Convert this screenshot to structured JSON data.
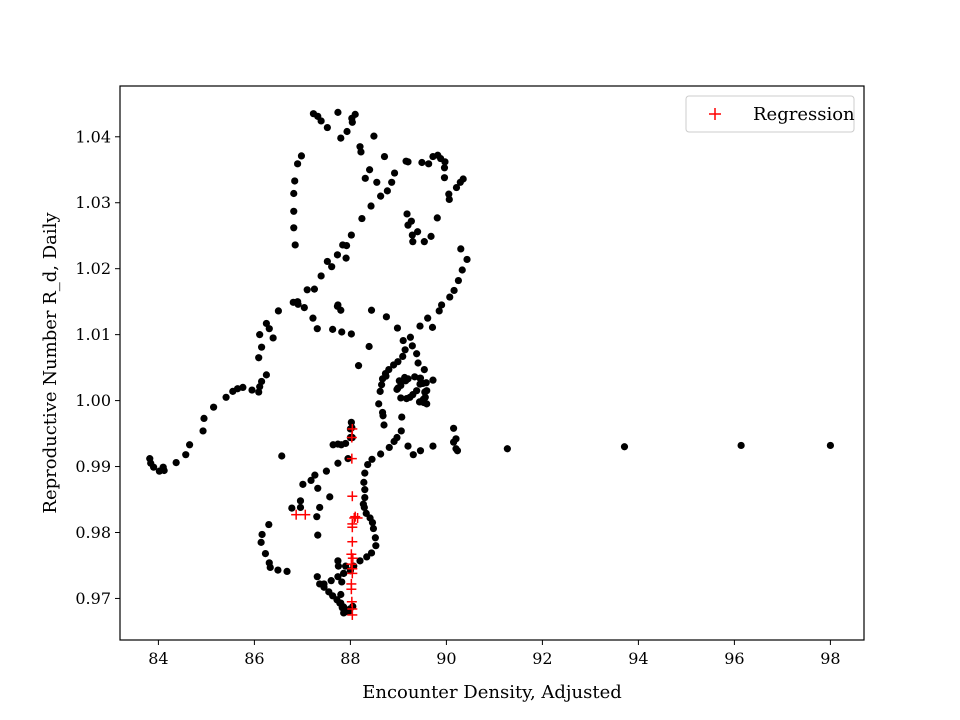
{
  "chart_data": {
    "type": "scatter",
    "title": "",
    "xlabel": "Encounter Density, Adjusted",
    "ylabel": "Reproductive Number R_d, Daily",
    "xlim": [
      83.2,
      98.7
    ],
    "ylim": [
      0.9637,
      1.0477
    ],
    "xticks": [
      84,
      86,
      88,
      90,
      92,
      94,
      96,
      98
    ],
    "yticks": [
      0.97,
      0.98,
      0.99,
      1.0,
      1.01,
      1.02,
      1.03,
      1.04
    ],
    "ytick_labels": [
      "0.97",
      "0.98",
      "0.99",
      "1.00",
      "1.01",
      "1.02",
      "1.03",
      "1.04"
    ],
    "grid": false,
    "legend": {
      "position": "top-right",
      "entries": [
        "Regression"
      ]
    },
    "series": [
      {
        "marker": "dot",
        "color": "#000000",
        "points": [
          [
            83.82,
            0.9912
          ],
          [
            83.84,
            0.9905
          ],
          [
            83.9,
            0.9899
          ],
          [
            84.02,
            0.9893
          ],
          [
            84.12,
            0.9894
          ],
          [
            84.1,
            0.9899
          ],
          [
            84.37,
            0.9906
          ],
          [
            84.57,
            0.9918
          ],
          [
            84.65,
            0.9933
          ],
          [
            84.93,
            0.9954
          ],
          [
            84.95,
            0.9973
          ],
          [
            85.15,
            0.999
          ],
          [
            85.41,
            1.0005
          ],
          [
            85.55,
            1.0014
          ],
          [
            85.65,
            1.0018
          ],
          [
            85.76,
            1.002
          ],
          [
            85.95,
            1.0016
          ],
          [
            86.09,
            1.0013
          ],
          [
            86.11,
            1.0021
          ],
          [
            86.15,
            1.0029
          ],
          [
            86.25,
            1.0039
          ],
          [
            86.09,
            1.0065
          ],
          [
            86.15,
            1.0081
          ],
          [
            86.39,
            1.0095
          ],
          [
            86.31,
            1.0109
          ],
          [
            86.11,
            1.01
          ],
          [
            86.25,
            1.0117
          ],
          [
            86.5,
            1.0136
          ],
          [
            86.81,
            1.0149
          ],
          [
            86.91,
            1.0146
          ],
          [
            87.04,
            1.0141
          ],
          [
            87.22,
            1.0125
          ],
          [
            87.25,
            1.0169
          ],
          [
            87.39,
            1.0189
          ],
          [
            87.52,
            1.0211
          ],
          [
            87.61,
            1.0203
          ],
          [
            87.73,
            1.0221
          ],
          [
            87.84,
            1.0236
          ],
          [
            87.92,
            1.0235
          ],
          [
            87.91,
            1.0216
          ],
          [
            88.02,
            1.0251
          ],
          [
            88.24,
            1.0276
          ],
          [
            88.43,
            1.0295
          ],
          [
            88.63,
            1.031
          ],
          [
            88.77,
            1.0318
          ],
          [
            88.86,
            1.0331
          ],
          [
            88.92,
            1.0345
          ],
          [
            88.71,
            1.037
          ],
          [
            88.49,
            1.0401
          ],
          [
            88.03,
            1.0428
          ],
          [
            88.1,
            1.0434
          ],
          [
            88.04,
            1.0422
          ],
          [
            87.93,
            1.0408
          ],
          [
            87.8,
            1.0398
          ],
          [
            87.52,
            1.0414
          ],
          [
            87.39,
            1.0424
          ],
          [
            87.32,
            1.0431
          ],
          [
            87.23,
            1.0435
          ],
          [
            87.74,
            1.0437
          ],
          [
            86.98,
            1.0371
          ],
          [
            86.9,
            1.0359
          ],
          [
            86.84,
            1.0333
          ],
          [
            86.82,
            1.0314
          ],
          [
            86.82,
            1.0287
          ],
          [
            86.82,
            1.0262
          ],
          [
            86.85,
            1.0236
          ],
          [
            87.1,
            1.0168
          ],
          [
            87.31,
            1.0109
          ],
          [
            86.9,
            1.015
          ],
          [
            87.73,
            1.0143
          ],
          [
            87.74,
            1.0145
          ],
          [
            87.8,
            1.0137
          ],
          [
            87.63,
            1.0108
          ],
          [
            87.82,
            1.0104
          ],
          [
            88.44,
            1.0137
          ],
          [
            88.75,
            1.0127
          ],
          [
            88.98,
            1.011
          ],
          [
            89.1,
            1.0091
          ],
          [
            89.14,
            1.0077
          ],
          [
            89.09,
            1.0067
          ],
          [
            88.99,
            1.0059
          ],
          [
            88.9,
            1.0054
          ],
          [
            88.8,
            1.0047
          ],
          [
            88.73,
            1.0041
          ],
          [
            88.67,
            1.0033
          ],
          [
            88.65,
            1.0024
          ],
          [
            88.62,
            1.0014
          ],
          [
            88.59,
            0.9995
          ],
          [
            88.67,
            0.9982
          ],
          [
            88.99,
            1.0019
          ],
          [
            89.05,
            1.0023
          ],
          [
            89.15,
            1.003
          ],
          [
            89.2,
            1.0033
          ],
          [
            89.34,
            1.0036
          ],
          [
            89.45,
            1.0034
          ],
          [
            89.45,
            1.0025
          ],
          [
            89.38,
            1.0015
          ],
          [
            89.3,
            1.0009
          ],
          [
            89.24,
            1.0005
          ],
          [
            89.17,
            1.0003
          ],
          [
            89.05,
            1.0004
          ],
          [
            88.97,
            1.0017
          ],
          [
            89.02,
            1.003
          ],
          [
            89.13,
            1.0035
          ],
          [
            89.46,
            1.0034
          ],
          [
            89.51,
            1.0026
          ],
          [
            89.55,
            1.0013
          ],
          [
            89.56,
            1.0005
          ],
          [
            89.59,
            0.9995
          ],
          [
            89.53,
            0.9997
          ],
          [
            89.44,
            0.9998
          ],
          [
            89.52,
            1.0002
          ],
          [
            89.59,
            1.0015
          ],
          [
            89.58,
            1.0027
          ],
          [
            89.72,
            1.0031
          ],
          [
            89.54,
            1.0047
          ],
          [
            89.41,
            1.0057
          ],
          [
            89.38,
            1.0071
          ],
          [
            89.29,
            1.0083
          ],
          [
            89.25,
            1.0096
          ],
          [
            89.45,
            1.0113
          ],
          [
            89.61,
            1.0125
          ],
          [
            89.71,
            1.0111
          ],
          [
            89.85,
            1.0136
          ],
          [
            89.9,
            1.0145
          ],
          [
            90.07,
            1.0157
          ],
          [
            90.16,
            1.0167
          ],
          [
            90.25,
            1.0182
          ],
          [
            90.33,
            1.0198
          ],
          [
            90.43,
            1.0214
          ],
          [
            90.3,
            1.023
          ],
          [
            89.81,
            1.0277
          ],
          [
            89.68,
            1.0249
          ],
          [
            89.54,
            1.0241
          ],
          [
            89.4,
            1.0256
          ],
          [
            89.3,
            1.0241
          ],
          [
            89.29,
            1.0251
          ],
          [
            89.27,
            1.0272
          ],
          [
            89.18,
            1.0283
          ],
          [
            89.2,
            1.0266
          ],
          [
            89.16,
            1.0363
          ],
          [
            89.2,
            1.0362
          ],
          [
            89.49,
            1.0361
          ],
          [
            89.63,
            1.0359
          ],
          [
            89.72,
            1.037
          ],
          [
            89.82,
            1.0372
          ],
          [
            89.88,
            1.0367
          ],
          [
            89.96,
            1.0353
          ],
          [
            89.97,
            1.0362
          ],
          [
            89.96,
            1.0338
          ],
          [
            90.05,
            1.0313
          ],
          [
            90.06,
            1.0305
          ],
          [
            90.21,
            1.0323
          ],
          [
            90.35,
            1.0336
          ],
          [
            90.29,
            1.0331
          ],
          [
            88.55,
            1.0331
          ],
          [
            88.4,
            1.035
          ],
          [
            88.2,
            1.0385
          ],
          [
            88.22,
            1.0377
          ],
          [
            88.31,
            1.0337
          ],
          [
            88.74,
            1.0037
          ],
          [
            88.39,
            1.0082
          ],
          [
            88.17,
            1.0053
          ],
          [
            88.02,
            1.0101
          ],
          [
            88.68,
            0.9977
          ],
          [
            89.07,
            0.9975
          ],
          [
            88.7,
            0.9963
          ],
          [
            89.06,
            0.9954
          ],
          [
            88.97,
            0.9944
          ],
          [
            88.91,
            0.9938
          ],
          [
            89.2,
            0.9931
          ],
          [
            89.72,
            0.9931
          ],
          [
            89.46,
            0.9924
          ],
          [
            89.31,
            0.9918
          ],
          [
            88.81,
            0.9929
          ],
          [
            88.63,
            0.9919
          ],
          [
            88.45,
            0.9911
          ],
          [
            88.36,
            0.9903
          ],
          [
            88.3,
            0.989
          ],
          [
            88.28,
            0.9876
          ],
          [
            88.3,
            0.9865
          ],
          [
            88.3,
            0.9853
          ],
          [
            88.27,
            0.9843
          ],
          [
            88.29,
            0.9838
          ],
          [
            88.33,
            0.9829
          ],
          [
            88.41,
            0.9822
          ],
          [
            88.46,
            0.9815
          ],
          [
            88.48,
            0.9806
          ],
          [
            88.52,
            0.9792
          ],
          [
            88.53,
            0.978
          ],
          [
            88.44,
            0.9769
          ],
          [
            88.34,
            0.9763
          ],
          [
            88.2,
            0.9757
          ],
          [
            88.07,
            0.9749
          ],
          [
            88.0,
            0.9742
          ],
          [
            87.86,
            0.9738
          ],
          [
            87.74,
            0.9733
          ],
          [
            87.6,
            0.9727
          ],
          [
            87.45,
            0.9722
          ],
          [
            87.31,
            0.9733
          ],
          [
            87.36,
            0.9722
          ],
          [
            87.45,
            0.9717
          ],
          [
            87.55,
            0.971
          ],
          [
            87.63,
            0.9704
          ],
          [
            87.72,
            0.9698
          ],
          [
            87.8,
            0.9693
          ],
          [
            87.86,
            0.9687
          ],
          [
            87.93,
            0.968
          ],
          [
            87.99,
            0.9684
          ],
          [
            88.05,
            0.9688
          ],
          [
            87.86,
            0.9678
          ],
          [
            87.98,
            0.9681
          ],
          [
            87.83,
            0.9686
          ],
          [
            87.78,
            0.9693
          ],
          [
            87.8,
            0.9706
          ],
          [
            87.82,
            0.9725
          ],
          [
            87.86,
            0.9738
          ],
          [
            87.9,
            0.9749
          ],
          [
            87.75,
            0.9749
          ],
          [
            87.74,
            0.9757
          ],
          [
            88.0,
            0.9944
          ],
          [
            88.04,
            0.9944
          ],
          [
            87.9,
            0.9935
          ],
          [
            87.74,
            0.9934
          ],
          [
            87.81,
            0.9933
          ],
          [
            87.64,
            0.9933
          ],
          [
            87.74,
            0.9905
          ],
          [
            87.95,
            0.9912
          ],
          [
            87.5,
            0.9893
          ],
          [
            87.26,
            0.9887
          ],
          [
            87.01,
            0.9873
          ],
          [
            87.18,
            0.9879
          ],
          [
            87.32,
            0.9867
          ],
          [
            87.57,
            0.9854
          ],
          [
            86.96,
            0.9848
          ],
          [
            86.96,
            0.9838
          ],
          [
            87.36,
            0.9838
          ],
          [
            86.78,
            0.9837
          ],
          [
            86.3,
            0.9812
          ],
          [
            86.16,
            0.9797
          ],
          [
            86.14,
            0.9785
          ],
          [
            86.23,
            0.9768
          ],
          [
            86.31,
            0.9754
          ],
          [
            86.33,
            0.9747
          ],
          [
            86.49,
            0.9743
          ],
          [
            86.68,
            0.9741
          ],
          [
            86.57,
            0.9916
          ],
          [
            87.32,
            0.9796
          ],
          [
            87.3,
            0.9824
          ],
          [
            88.02,
            0.9967
          ],
          [
            88.03,
            0.9959
          ],
          [
            88.0,
            0.9957
          ],
          [
            90.15,
            0.9958
          ],
          [
            90.2,
            0.9942
          ],
          [
            90.15,
            0.9937
          ],
          [
            90.2,
            0.9927
          ],
          [
            90.23,
            0.9924
          ],
          [
            91.27,
            0.9927
          ],
          [
            93.71,
            0.993
          ],
          [
            96.14,
            0.9932
          ],
          [
            98.0,
            0.9932
          ]
        ]
      },
      {
        "name": "Regression",
        "marker": "plus",
        "color": "#ff0000",
        "points": [
          [
            88.04,
            0.9957
          ],
          [
            88.03,
            0.9944
          ],
          [
            88.03,
            0.9912
          ],
          [
            88.04,
            0.9855
          ],
          [
            88.08,
            0.9822
          ],
          [
            88.04,
            0.9813
          ],
          [
            88.04,
            0.9808
          ],
          [
            88.04,
            0.9786
          ],
          [
            88.02,
            0.9767
          ],
          [
            88.05,
            0.9761
          ],
          [
            88.02,
            0.9752
          ],
          [
            88.04,
            0.9745
          ],
          [
            88.04,
            0.9738
          ],
          [
            88.02,
            0.9722
          ],
          [
            88.02,
            0.9714
          ],
          [
            88.03,
            0.9695
          ],
          [
            88.04,
            0.9684
          ],
          [
            88.04,
            0.9675
          ],
          [
            86.87,
            0.9827
          ],
          [
            87.06,
            0.9827
          ],
          [
            88.1,
            0.9824
          ],
          [
            88.15,
            0.9822
          ]
        ]
      }
    ]
  }
}
